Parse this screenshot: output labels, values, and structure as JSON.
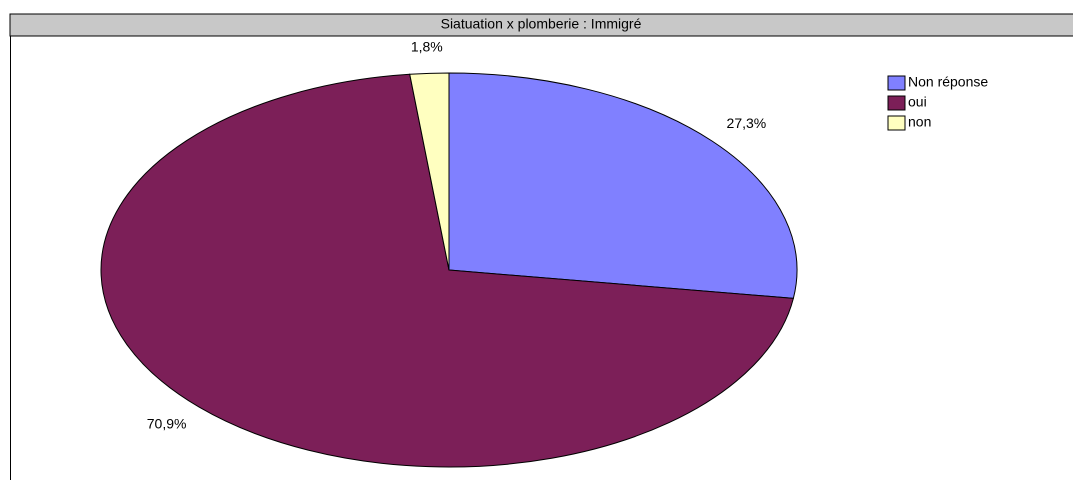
{
  "chart_data": {
    "type": "pie",
    "title": "Siatuation x plomberie : Immigré",
    "categories": [
      "Non réponse",
      "oui",
      "non"
    ],
    "values": [
      27.3,
      70.9,
      1.8
    ],
    "value_labels": [
      "27,3%",
      "70,9%",
      "1,8%"
    ],
    "colors": [
      "#8080ff",
      "#7c1f58",
      "#ffffc0"
    ],
    "legend": "upper right"
  }
}
